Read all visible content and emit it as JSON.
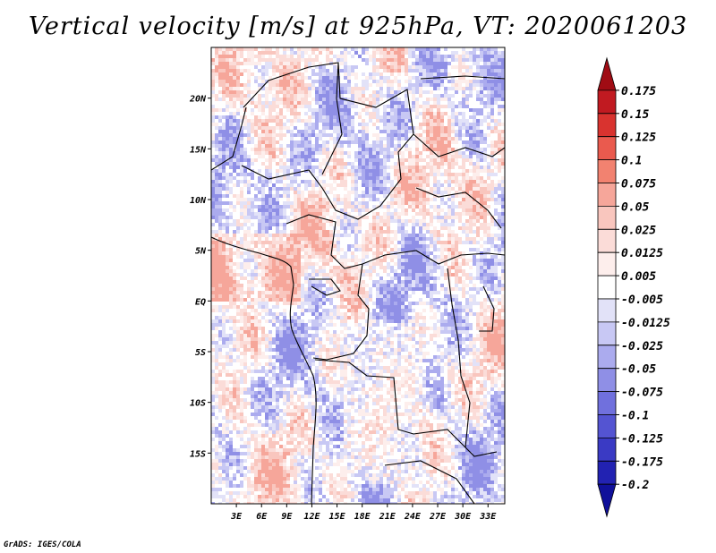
{
  "title": "Vertical velocity [m/s] at 925hPa, VT: 2020061203",
  "credit": "GrADS: IGES/COLA",
  "map": {
    "variable": "Vertical velocity",
    "units": "m/s",
    "level": "925hPa",
    "valid_time": "2020061203",
    "lon_range": [
      0,
      35
    ],
    "lat_range": [
      -20,
      25
    ],
    "x_ticks": [
      {
        "value": 3,
        "label": "3E"
      },
      {
        "value": 6,
        "label": "6E"
      },
      {
        "value": 9,
        "label": "9E"
      },
      {
        "value": 12,
        "label": "12E"
      },
      {
        "value": 15,
        "label": "15E"
      },
      {
        "value": 18,
        "label": "18E"
      },
      {
        "value": 21,
        "label": "21E"
      },
      {
        "value": 24,
        "label": "24E"
      },
      {
        "value": 27,
        "label": "27E"
      },
      {
        "value": 30,
        "label": "30E"
      },
      {
        "value": 33,
        "label": "33E"
      }
    ],
    "y_ticks": [
      {
        "value": 20,
        "label": "20N"
      },
      {
        "value": 15,
        "label": "15N"
      },
      {
        "value": 10,
        "label": "10N"
      },
      {
        "value": 5,
        "label": "5N"
      },
      {
        "value": 0,
        "label": "EQ"
      },
      {
        "value": -5,
        "label": "5S"
      },
      {
        "value": -10,
        "label": "10S"
      },
      {
        "value": -15,
        "label": "15S"
      }
    ]
  },
  "colorbar": {
    "colors": [
      "#a00c14",
      "#c11a21",
      "#d9332f",
      "#ea5a4e",
      "#f28270",
      "#f6a69a",
      "#f9c6be",
      "#fbdcd8",
      "#fdeeec",
      "#ffffff",
      "#e2e2f8",
      "#c8c8f4",
      "#ababee",
      "#8f8fe6",
      "#7070dd",
      "#5454d2",
      "#3a3ac4",
      "#2222b2",
      "#10109a"
    ],
    "labels": [
      "0.175",
      "0.15",
      "0.125",
      "0.1",
      "0.075",
      "0.05",
      "0.025",
      "0.0125",
      "0.005",
      "-0.005",
      "-0.0125",
      "-0.025",
      "-0.05",
      "-0.075",
      "-0.1",
      "-0.125",
      "-0.175",
      "-0.2"
    ]
  }
}
